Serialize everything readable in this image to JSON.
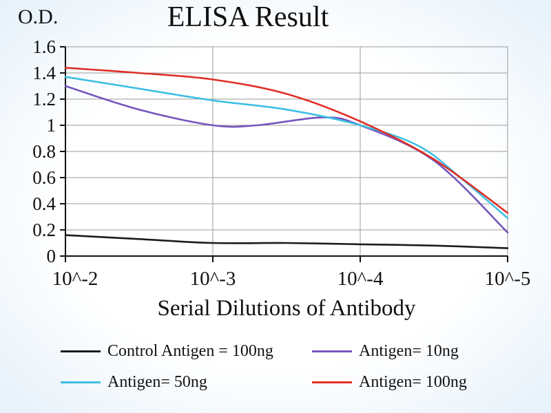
{
  "chart_data": {
    "type": "line",
    "title": "ELISA Result",
    "ylabel": "O.D.",
    "xlabel": "Serial Dilutions of Antibody",
    "categories": [
      "10^-2",
      "10^-3",
      "10^-4",
      "10^-5"
    ],
    "ylim": [
      0,
      1.6
    ],
    "ytick_step": 0.2,
    "ytick_labels": [
      "0",
      "0.2",
      "0.4",
      "0.6",
      "0.8",
      "1",
      "1.2",
      "1.4",
      "1.6"
    ],
    "grid": true,
    "legend_position": "bottom",
    "colors": {
      "grid": "#9b9b9b",
      "axis": "#111111"
    },
    "series": [
      {
        "name": "Control Antigen = 100ng",
        "color": "#1b1b1b",
        "values": [
          0.16,
          0.1,
          0.09,
          0.06
        ],
        "points": [
          [
            0,
            0.16
          ],
          [
            0.5,
            0.13
          ],
          [
            1,
            0.1
          ],
          [
            1.5,
            0.1
          ],
          [
            2,
            0.09
          ],
          [
            2.5,
            0.08
          ],
          [
            3,
            0.06
          ]
        ]
      },
      {
        "name": "Antigen= 10ng",
        "color": "#7455bd",
        "values": [
          1.3,
          1.0,
          1.0,
          0.18
        ],
        "points": [
          [
            0,
            1.3
          ],
          [
            0.5,
            1.12
          ],
          [
            1,
            1.0
          ],
          [
            1.3,
            1.0
          ],
          [
            1.75,
            1.06
          ],
          [
            2,
            1.0
          ],
          [
            2.5,
            0.73
          ],
          [
            3,
            0.18
          ]
        ]
      },
      {
        "name": "Antigen= 50ng",
        "color": "#3dbfe2",
        "values": [
          1.37,
          1.19,
          1.0,
          0.3
        ],
        "points": [
          [
            0,
            1.37
          ],
          [
            0.5,
            1.28
          ],
          [
            1,
            1.19
          ],
          [
            1.5,
            1.12
          ],
          [
            2,
            1.0
          ],
          [
            2.4,
            0.84
          ],
          [
            2.7,
            0.58
          ],
          [
            3,
            0.29
          ]
        ]
      },
      {
        "name": "Antigen= 100ng",
        "color": "#e02f26",
        "values": [
          1.44,
          1.35,
          1.03,
          0.33
        ],
        "points": [
          [
            0,
            1.44
          ],
          [
            0.5,
            1.4
          ],
          [
            1,
            1.35
          ],
          [
            1.5,
            1.24
          ],
          [
            2,
            1.03
          ],
          [
            2.5,
            0.74
          ],
          [
            3,
            0.33
          ]
        ]
      }
    ]
  }
}
